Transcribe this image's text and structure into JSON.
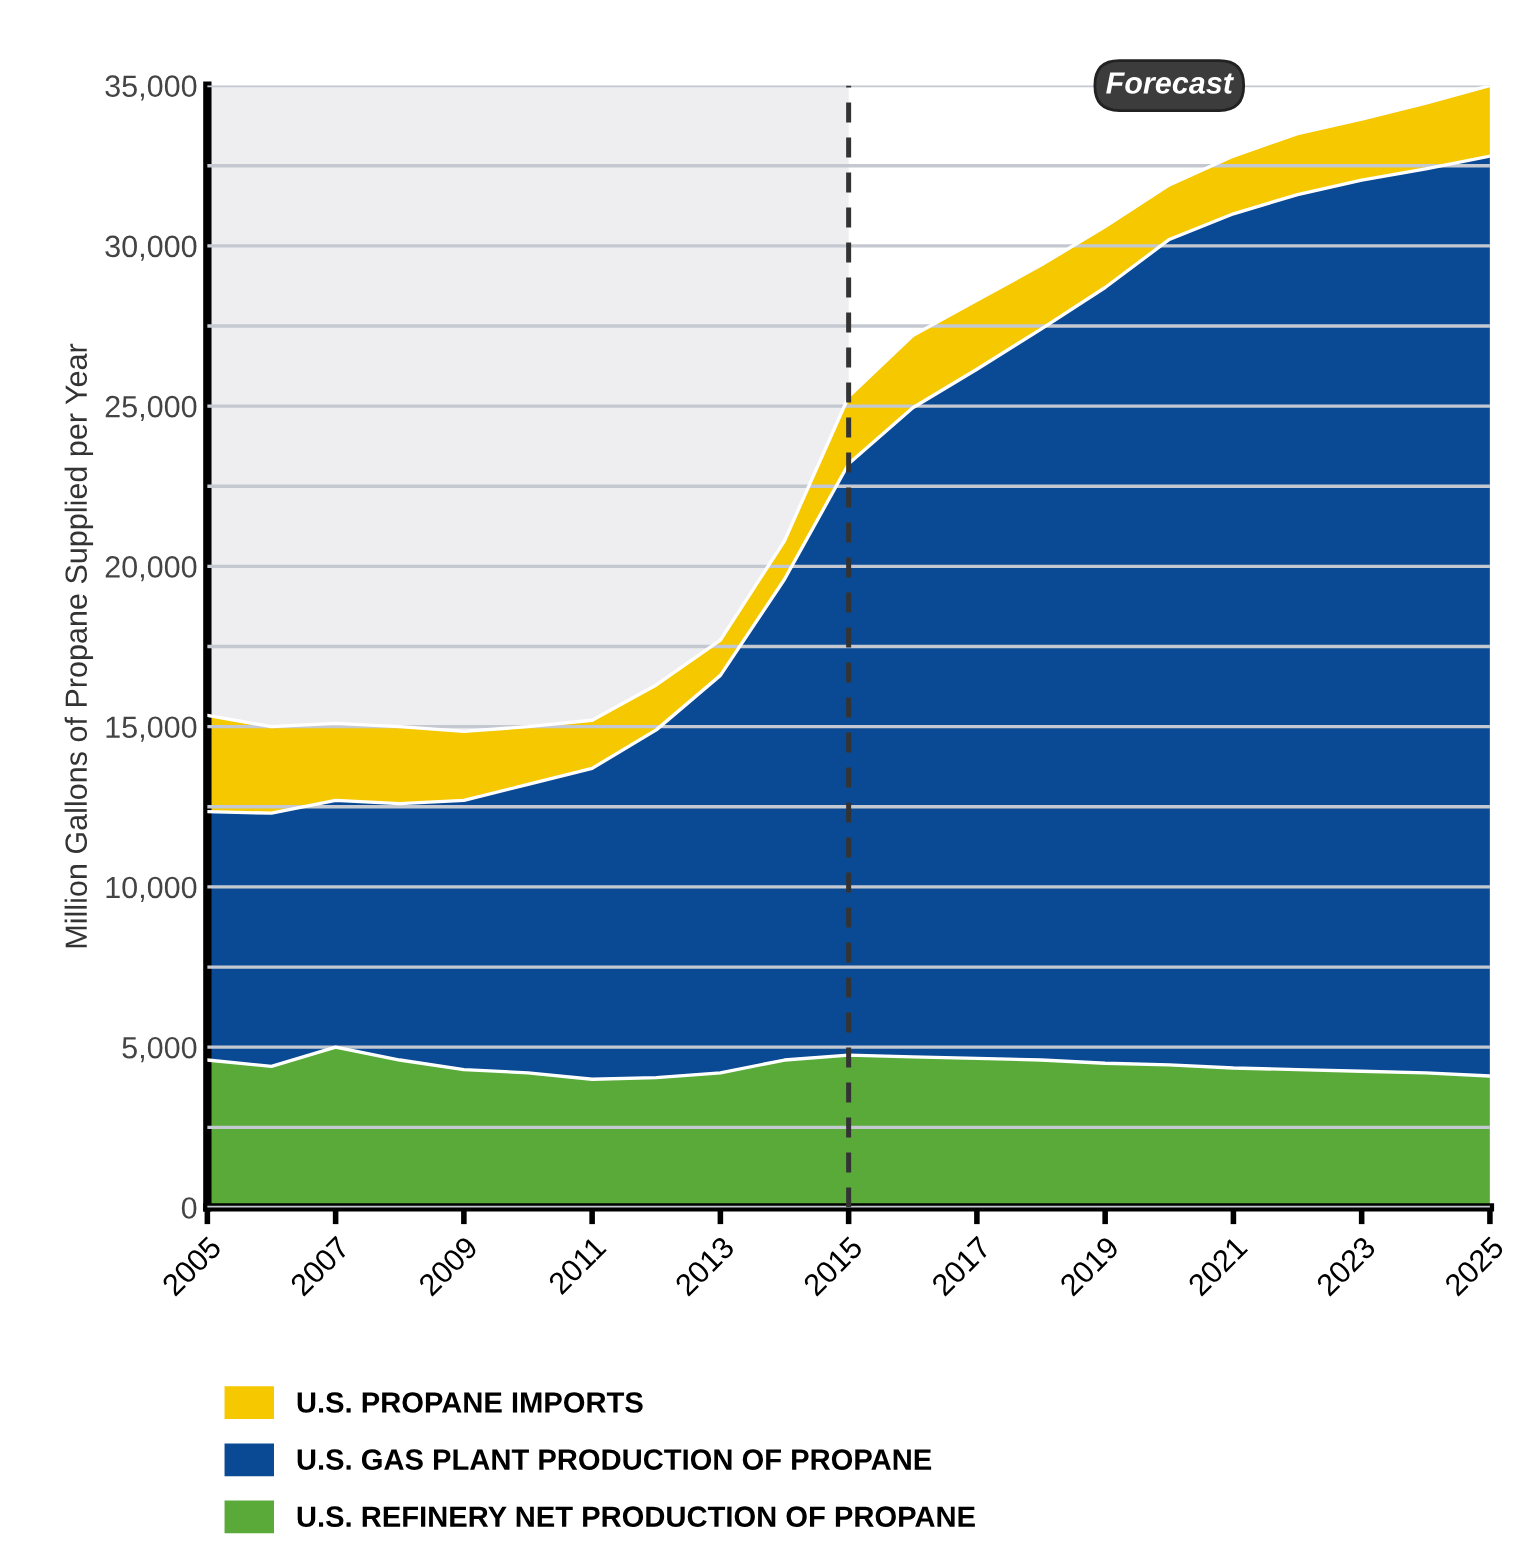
{
  "chart_data": {
    "type": "area",
    "stacked": true,
    "ylabel": "Million Gallons of Propane Supplied per Year",
    "x": [
      2005,
      2006,
      2007,
      2008,
      2009,
      2010,
      2011,
      2012,
      2013,
      2014,
      2015,
      2016,
      2017,
      2018,
      2019,
      2020,
      2021,
      2022,
      2023,
      2024,
      2025
    ],
    "series": [
      {
        "name": "U.S. REFINERY NET PRODUCTION OF PROPANE",
        "color": "#5aaa3a",
        "values": [
          4600,
          4400,
          5000,
          4600,
          4300,
          4200,
          4000,
          4050,
          4200,
          4600,
          4750,
          4700,
          4650,
          4600,
          4500,
          4450,
          4350,
          4300,
          4250,
          4200,
          4100
        ]
      },
      {
        "name": "U.S. GAS PLANT PRODUCTION OF PROPANE",
        "color": "#0a4a94",
        "values": [
          7750,
          7900,
          7700,
          8000,
          8400,
          9000,
          9700,
          10850,
          12400,
          15000,
          18450,
          20250,
          21500,
          22800,
          24200,
          25750,
          26650,
          27300,
          27800,
          28200,
          28700
        ]
      },
      {
        "name": "U.S. PROPANE IMPORTS",
        "color": "#f5c800",
        "values": [
          3000,
          2700,
          2400,
          2400,
          2150,
          1800,
          1500,
          1400,
          1100,
          1200,
          2100,
          2250,
          2150,
          2000,
          1900,
          1700,
          1800,
          1900,
          1900,
          2050,
          2200
        ]
      }
    ],
    "xlim": [
      2005,
      2025
    ],
    "xticks": [
      2005,
      2007,
      2009,
      2011,
      2013,
      2015,
      2017,
      2019,
      2021,
      2023,
      2025
    ],
    "ylim": [
      0,
      35000
    ],
    "yticks": [
      0,
      {
        "value": 2500,
        "label": null
      },
      {
        "value": 5000,
        "label": "5,000"
      },
      {
        "value": 7500,
        "label": null
      },
      {
        "value": 10000,
        "label": "10,000"
      },
      {
        "value": 12500,
        "label": null
      },
      {
        "value": 15000,
        "label": "15,000"
      },
      {
        "value": 17500,
        "label": null
      },
      {
        "value": 20000,
        "label": "20,000"
      },
      {
        "value": 22500,
        "label": null
      },
      {
        "value": 25000,
        "label": "25,000"
      },
      {
        "value": 27500,
        "label": null
      },
      {
        "value": 30000,
        "label": "30,000"
      },
      {
        "value": 32500,
        "label": null
      },
      {
        "value": 35000,
        "label": "35,000"
      }
    ],
    "grid": "y",
    "legend": "bottom",
    "bands": [
      {
        "axis": "x",
        "from": 2005,
        "to": 2015,
        "color": "#eeeef0"
      }
    ],
    "ref_lines": [
      {
        "axis": "x",
        "value": 2015,
        "line_style": "dashed",
        "color": "#333333"
      }
    ],
    "annotations": [
      "Forecast"
    ]
  }
}
